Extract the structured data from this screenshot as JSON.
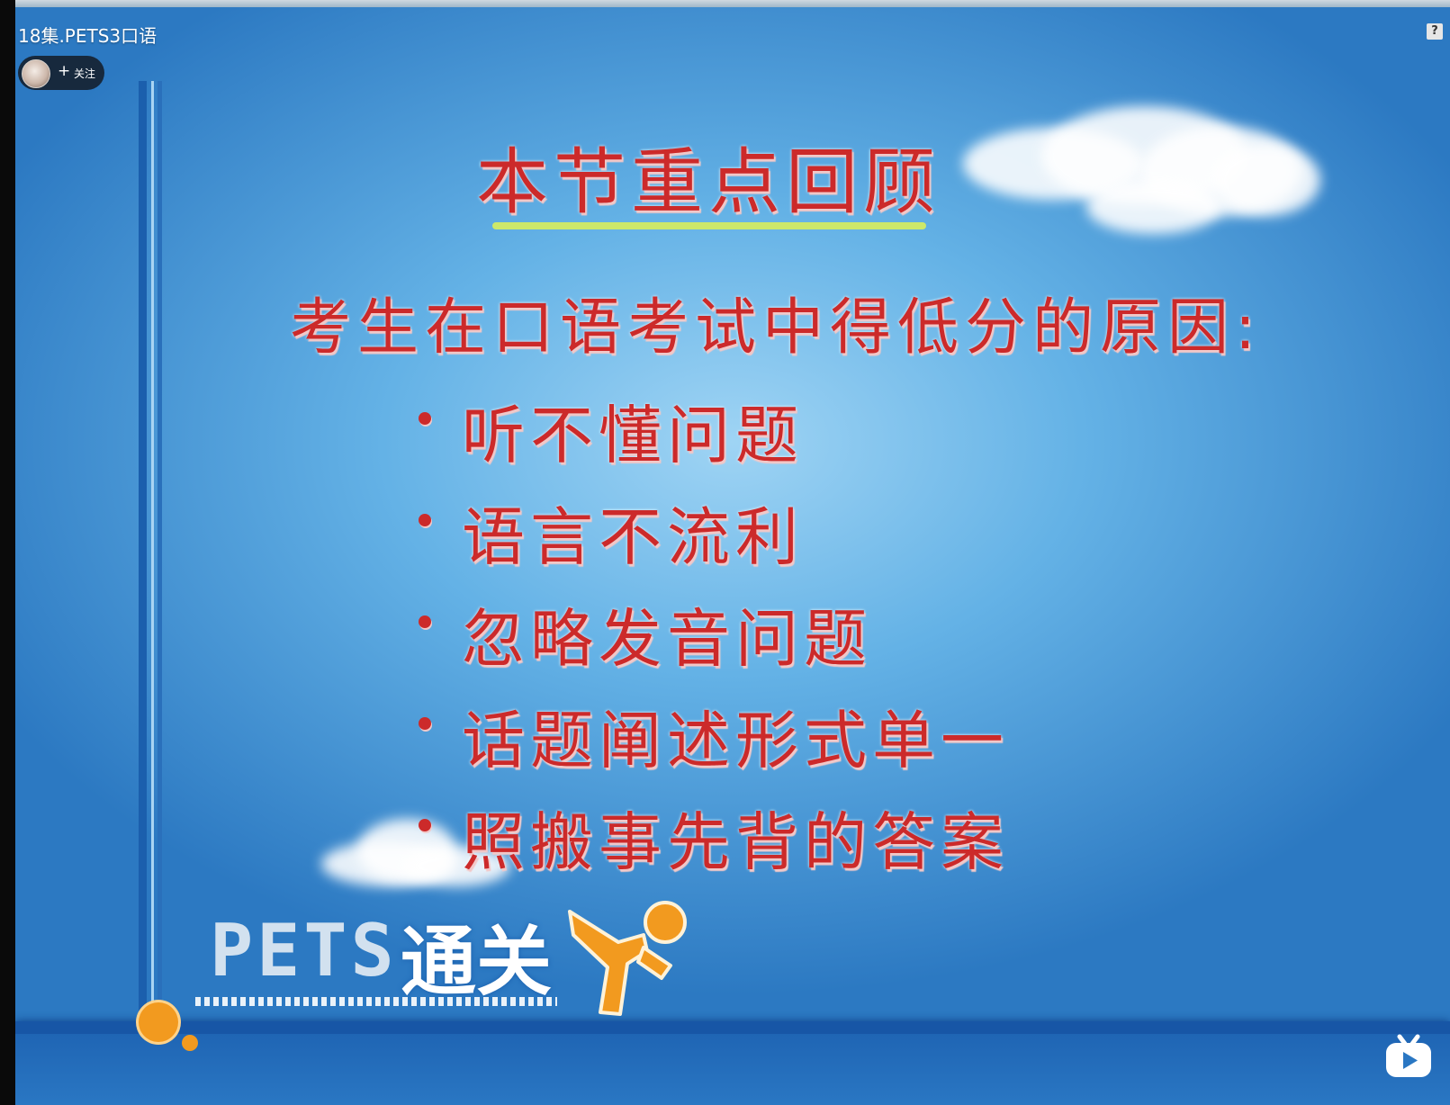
{
  "player": {
    "title": "18集.PETS3口语",
    "uploader": {
      "follow_plus": "+",
      "follow_label": "关注"
    },
    "help_label": "?",
    "icons": {
      "avatar": "avatar",
      "help": "help-icon",
      "app_logo": "bilibili-tv-icon"
    }
  },
  "slide": {
    "heading": "本节重点回顾",
    "subheading": "考生在口语考试中得低分的原因:",
    "bullets": [
      "听不懂问题",
      "语言不流利",
      "忽略发音问题",
      "话题阐述形式单一",
      "照搬事先背的答案"
    ],
    "logo": {
      "pets": "PETS",
      "tongguan": "通关"
    }
  },
  "colors": {
    "slide_text": "#cc2a2a",
    "heading_underline": "#cde86a",
    "background_top": "#9fd4f4",
    "background_edge": "#2c79c2",
    "mascot_orange": "#f29a1f"
  }
}
